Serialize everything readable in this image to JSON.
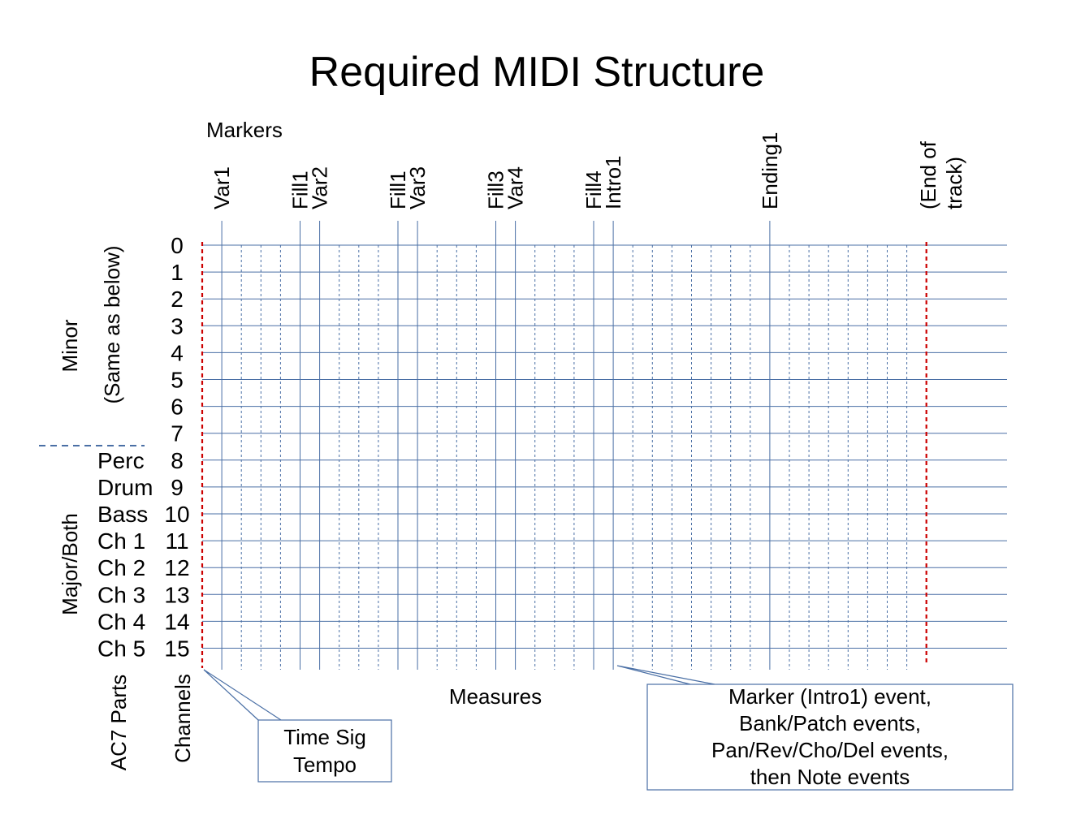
{
  "title": "Required MIDI Structure",
  "markers_heading": "Markers",
  "markers": [
    {
      "label": "Var1",
      "measure": 1
    },
    {
      "label": "Fill1",
      "measure": 5
    },
    {
      "label": "Var2",
      "measure": 6
    },
    {
      "label": "Fill1",
      "measure": 10
    },
    {
      "label": "Var3",
      "measure": 11
    },
    {
      "label": "Fill3",
      "measure": 15
    },
    {
      "label": "Var4",
      "measure": 16
    },
    {
      "label": "Fill4",
      "measure": 20
    },
    {
      "label": "Intro1",
      "measure": 21
    },
    {
      "label": "Ending1",
      "measure": 29
    }
  ],
  "end_of_track": {
    "line1": "(End of",
    "line2": "track)",
    "measure": 37
  },
  "channels": [
    "0",
    "1",
    "2",
    "3",
    "4",
    "5",
    "6",
    "7",
    "8",
    "9",
    "10",
    "11",
    "12",
    "13",
    "14",
    "15"
  ],
  "parts": [
    "Perc",
    "Drum",
    "Bass",
    "Ch 1",
    "Ch 2",
    "Ch 3",
    "Ch 4",
    "Ch 5"
  ],
  "minor_label": "Minor",
  "minor_note": "(Same as below)",
  "major_label": "Major/Both",
  "ac7_parts_label": "AC7 Parts",
  "channels_label": "Channels",
  "measures_label": "Measures",
  "callout_left": {
    "line1": "Time Sig",
    "line2": "Tempo"
  },
  "callout_right": {
    "line1": "Marker (Intro1) event,",
    "line2": "Bank/Patch events,",
    "line3": "Pan/Rev/Cho/Del events,",
    "line4": "then Note events"
  },
  "colors": {
    "grid": "#4a6fa5",
    "start_end": "#cc0000",
    "text": "#000000"
  }
}
